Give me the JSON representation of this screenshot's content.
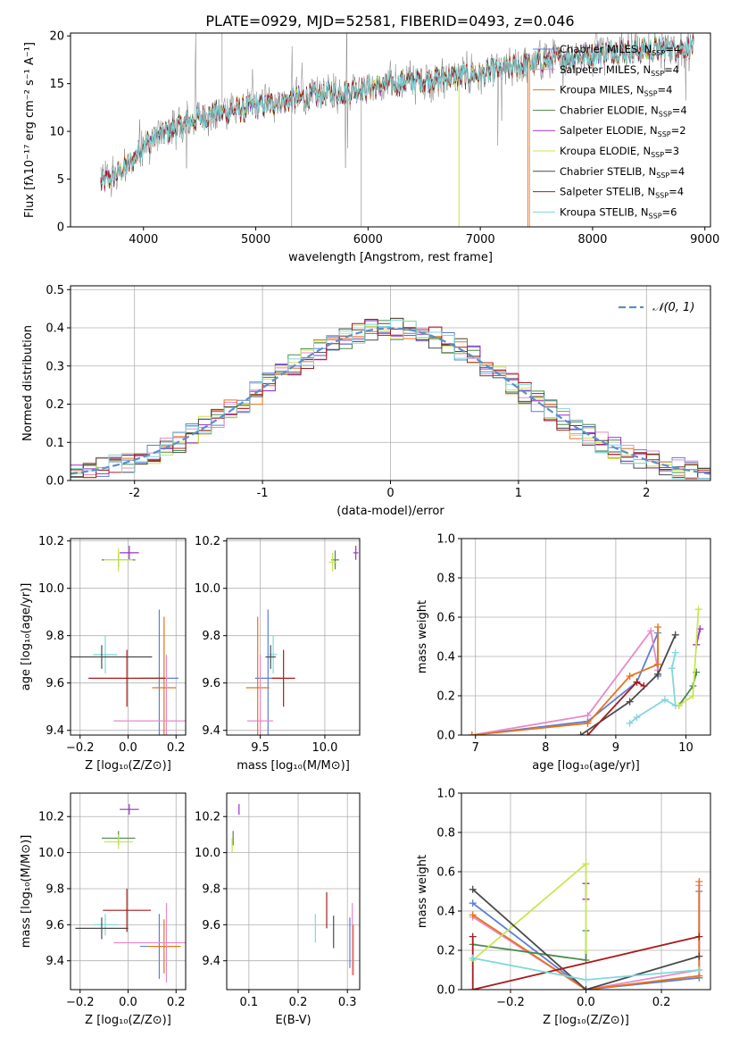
{
  "figure": {
    "title": "PLATE=0929, MJD=52581, FIBERID=0493, z=0.046"
  },
  "colors": {
    "Chabrier MILES": "#5b7fd6",
    "Salpeter MILES": "#e88ac8",
    "Kroupa MILES": "#e8731a",
    "Chabrier ELODIE": "#4c8a4c",
    "Salpeter ELODIE": "#9b30c8",
    "Kroupa ELODIE": "#c8e650",
    "Chabrier STELIB": "#4a4a4a",
    "Salpeter STELIB": "#a81c1c",
    "Kroupa STELIB": "#7fd8dc",
    "data": "#7f7f7f",
    "normal": "#5b8fc8"
  },
  "chart_data": [
    {
      "type": "line",
      "xlabel": "wavelength [Angstrom, rest frame]",
      "ylabel": "Flux [fλ10⁻¹⁷ erg cm⁻² s⁻¹ A⁻¹]",
      "xlim": [
        3350,
        9050
      ],
      "ylim": [
        0,
        20.3
      ],
      "xticks": [
        4000,
        5000,
        6000,
        7000,
        8000,
        9000
      ],
      "yticks": [
        0,
        5,
        10,
        15,
        20
      ],
      "grid": false,
      "legend": "right",
      "continuum_x": [
        3620,
        3700,
        3900,
        4000,
        4200,
        4400,
        4600,
        5000,
        5400,
        5800,
        6200,
        6600,
        7000,
        7400,
        7800,
        8200,
        8600,
        8900
      ],
      "continuum_y": [
        4.5,
        5.0,
        6.8,
        8.8,
        9.8,
        11.0,
        11.8,
        12.6,
        13.5,
        14.2,
        15.0,
        15.5,
        16.0,
        17.0,
        17.8,
        18.4,
        18.6,
        18.8
      ],
      "series": [
        {
          "name": "Chabrier MILES",
          "nssp": "4"
        },
        {
          "name": "Salpeter MILES",
          "nssp": "4"
        },
        {
          "name": "Kroupa MILES",
          "nssp": "4"
        },
        {
          "name": "Chabrier ELODIE",
          "nssp": "4"
        },
        {
          "name": "Salpeter ELODIE",
          "nssp": "2"
        },
        {
          "name": "Kroupa ELODIE",
          "nssp": "3"
        },
        {
          "name": "Chabrier STELIB",
          "nssp": "4"
        },
        {
          "name": "Salpeter STELIB",
          "nssp": "4"
        },
        {
          "name": "Kroupa STELIB",
          "nssp": "6"
        }
      ]
    },
    {
      "type": "line",
      "xlabel": "(data-model)/error",
      "ylabel": "Normed distribution",
      "xlim": [
        -2.5,
        2.5
      ],
      "ylim": [
        0,
        0.51
      ],
      "xticks": [
        -2,
        -1,
        0,
        1,
        2
      ],
      "yticks": [
        0.0,
        0.1,
        0.2,
        0.3,
        0.4,
        0.5
      ],
      "ytick_labels": [
        "0.0",
        "0.1",
        "0.2",
        "0.3",
        "0.4",
        "0.5"
      ],
      "grid": true,
      "legend": "top-right",
      "legend_label": "𝒩(0, 1)",
      "bin_width": 0.1,
      "histogram_series": [
        "Chabrier MILES",
        "Salpeter MILES",
        "Kroupa MILES",
        "Chabrier ELODIE",
        "Salpeter ELODIE",
        "Kroupa ELODIE",
        "Chabrier STELIB",
        "Salpeter STELIB",
        "Kroupa STELIB"
      ]
    },
    {
      "type": "scatter",
      "xlabel": "Z [log₁₀(Z/Z⊙)]",
      "ylabel": "age  [log₁₀(age/yr)]",
      "xlim": [
        -0.24,
        0.24
      ],
      "ylim": [
        9.38,
        10.21
      ],
      "xticks": [
        -0.2,
        0.0,
        0.2
      ],
      "xtick_labels": [
        "−0.2",
        "0.0",
        "0.2"
      ],
      "yticks": [
        9.4,
        9.6,
        9.8,
        10.0,
        10.2
      ],
      "ytick_labels": [
        "9.4",
        "9.6",
        "9.8",
        "10.0",
        "10.2"
      ],
      "grid": true,
      "points": [
        {
          "series": "Salpeter ELODIE",
          "x": 0.005,
          "y": 10.15,
          "xerr": 0.04,
          "yerr": 0.03
        },
        {
          "series": "Chabrier ELODIE",
          "x": -0.04,
          "y": 10.12,
          "xerr": 0.07,
          "yerr": 0.03
        },
        {
          "series": "Kroupa ELODIE",
          "x": -0.04,
          "y": 10.12,
          "xerr": 0.06,
          "yerr": 0.05
        },
        {
          "series": "Chabrier MILES",
          "x": 0.13,
          "y": 9.62,
          "xerr": 0.08,
          "yerr": 0.29
        },
        {
          "series": "Kroupa MILES",
          "x": 0.15,
          "y": 9.58,
          "xerr": 0.05,
          "yerr": 0.3
        },
        {
          "series": "Salpeter MILES",
          "x": 0.16,
          "y": 9.44,
          "xerr": 0.22,
          "yerr": 0.28
        },
        {
          "series": "Kroupa STELIB",
          "x": -0.095,
          "y": 9.72,
          "xerr": 0.05,
          "yerr": 0.08
        },
        {
          "series": "Chabrier STELIB",
          "x": -0.11,
          "y": 9.71,
          "xerr": 0.21,
          "yerr": 0.05
        },
        {
          "series": "Salpeter STELIB",
          "x": -0.005,
          "y": 9.62,
          "xerr": 0.16,
          "yerr": 0.12
        }
      ]
    },
    {
      "type": "scatter",
      "xlabel": "mass [log₁₀(M/M⊙)]",
      "xlim": [
        9.24,
        10.27
      ],
      "ylim": [
        9.38,
        10.21
      ],
      "xticks": [
        9.5,
        10.0
      ],
      "xtick_labels": [
        "9.5",
        "10.0"
      ],
      "yticks": [
        9.4,
        9.6,
        9.8,
        10.0,
        10.2
      ],
      "ytick_labels": [
        "9.4",
        "9.6",
        "9.8",
        "10.0",
        "10.2"
      ],
      "grid": true,
      "points": [
        {
          "series": "Salpeter ELODIE",
          "x": 10.24,
          "y": 10.15,
          "xerr": 0.02,
          "yerr": 0.03
        },
        {
          "series": "Chabrier ELODIE",
          "x": 10.08,
          "y": 10.12,
          "xerr": 0.03,
          "yerr": 0.04
        },
        {
          "series": "Kroupa ELODIE",
          "x": 10.06,
          "y": 10.11,
          "xerr": 0.03,
          "yerr": 0.04
        },
        {
          "series": "Chabrier MILES",
          "x": 9.56,
          "y": 9.62,
          "xerr": 0.1,
          "yerr": 0.29
        },
        {
          "series": "Kroupa MILES",
          "x": 9.48,
          "y": 9.58,
          "xerr": 0.09,
          "yerr": 0.3
        },
        {
          "series": "Salpeter MILES",
          "x": 9.5,
          "y": 9.44,
          "xerr": 0.1,
          "yerr": 0.28
        },
        {
          "series": "Kroupa STELIB",
          "x": 9.6,
          "y": 9.72,
          "xerr": 0.03,
          "yerr": 0.08
        },
        {
          "series": "Chabrier STELIB",
          "x": 9.58,
          "y": 9.71,
          "xerr": 0.04,
          "yerr": 0.05
        },
        {
          "series": "Salpeter STELIB",
          "x": 9.68,
          "y": 9.62,
          "xerr": 0.09,
          "yerr": 0.12
        }
      ]
    },
    {
      "type": "line",
      "xlabel": "age  [log₁₀(age/yr)]",
      "ylabel": "mass weight",
      "xlim": [
        6.8,
        10.35
      ],
      "ylim": [
        0,
        1.0
      ],
      "xticks": [
        7,
        8,
        9,
        10
      ],
      "xtick_labels": [
        "7",
        "8",
        "9",
        "10"
      ],
      "yticks": [
        0.0,
        0.2,
        0.4,
        0.6,
        0.8,
        1.0
      ],
      "ytick_labels": [
        "0.0",
        "0.2",
        "0.4",
        "0.6",
        "0.8",
        "1.0"
      ],
      "grid": true,
      "series": [
        {
          "name": "Chabrier MILES",
          "x": [
            6.95,
            8.6,
            9.3,
            9.6,
            9.6
          ],
          "y": [
            0.0,
            0.07,
            0.27,
            0.52,
            0.3
          ]
        },
        {
          "name": "Salpeter MILES",
          "x": [
            6.95,
            8.6,
            9.5,
            9.6
          ],
          "y": [
            0.0,
            0.1,
            0.53,
            0.33
          ]
        },
        {
          "name": "Kroupa MILES",
          "x": [
            6.95,
            8.6,
            9.2,
            9.6,
            9.6
          ],
          "y": [
            0.0,
            0.06,
            0.3,
            0.36,
            0.55
          ]
        },
        {
          "name": "Chabrier ELODIE",
          "x": [
            9.9,
            10.1,
            10.15
          ],
          "y": [
            0.15,
            0.25,
            0.32
          ]
        },
        {
          "name": "Salpeter ELODIE",
          "x": [
            10.15,
            10.2
          ],
          "y": [
            0.46,
            0.54
          ]
        },
        {
          "name": "Kroupa ELODIE",
          "x": [
            9.9,
            10.1,
            10.18
          ],
          "y": [
            0.15,
            0.2,
            0.64
          ]
        },
        {
          "name": "Chabrier STELIB",
          "x": [
            8.5,
            9.2,
            9.6,
            9.85
          ],
          "y": [
            0.0,
            0.17,
            0.31,
            0.51
          ]
        },
        {
          "name": "Salpeter STELIB",
          "x": [
            8.6,
            9.3,
            9.4
          ],
          "y": [
            0.0,
            0.27,
            0.25
          ]
        },
        {
          "name": "Kroupa STELIB",
          "x": [
            9.2,
            9.3,
            9.7,
            9.85,
            9.8,
            9.85
          ],
          "y": [
            0.06,
            0.09,
            0.18,
            0.15,
            0.34,
            0.42
          ]
        }
      ]
    },
    {
      "type": "scatter",
      "xlabel": "Z [log₁₀(Z/Z⊙)]",
      "ylabel": "mass [log₁₀(M/M⊙)]",
      "xlim": [
        -0.24,
        0.24
      ],
      "ylim": [
        9.24,
        10.33
      ],
      "xticks": [
        -0.2,
        0.0,
        0.2
      ],
      "xtick_labels": [
        "−0.2",
        "0.0",
        "0.2"
      ],
      "yticks": [
        9.4,
        9.6,
        9.8,
        10.0,
        10.2
      ],
      "ytick_labels": [
        "9.4",
        "9.6",
        "9.8",
        "10.0",
        "10.2"
      ],
      "grid": true,
      "points": [
        {
          "series": "Salpeter ELODIE",
          "x": 0.005,
          "y": 10.24,
          "xerr": 0.04,
          "yerr": 0.03
        },
        {
          "series": "Chabrier ELODIE",
          "x": -0.04,
          "y": 10.08,
          "xerr": 0.07,
          "yerr": 0.04
        },
        {
          "series": "Kroupa ELODIE",
          "x": -0.04,
          "y": 10.06,
          "xerr": 0.06,
          "yerr": 0.04
        },
        {
          "series": "Chabrier MILES",
          "x": 0.13,
          "y": 9.48,
          "xerr": 0.08,
          "yerr": 0.18
        },
        {
          "series": "Kroupa MILES",
          "x": 0.15,
          "y": 9.48,
          "xerr": 0.07,
          "yerr": 0.15
        },
        {
          "series": "Salpeter MILES",
          "x": 0.16,
          "y": 9.5,
          "xerr": 0.22,
          "yerr": 0.22
        },
        {
          "series": "Kroupa STELIB",
          "x": -0.095,
          "y": 9.6,
          "xerr": 0.05,
          "yerr": 0.06
        },
        {
          "series": "Chabrier STELIB",
          "x": -0.11,
          "y": 9.58,
          "xerr": 0.11,
          "yerr": 0.06
        },
        {
          "series": "Salpeter STELIB",
          "x": -0.005,
          "y": 9.68,
          "xerr": 0.1,
          "yerr": 0.12
        }
      ]
    },
    {
      "type": "scatter",
      "xlabel": "E(B-V)",
      "xlim": [
        0.055,
        0.325
      ],
      "ylim": [
        9.24,
        10.33
      ],
      "xticks": [
        0.1,
        0.2,
        0.3
      ],
      "xtick_labels": [
        "0.1",
        "0.2",
        "0.3"
      ],
      "yticks": [
        9.4,
        9.6,
        9.8,
        10.0,
        10.2
      ],
      "ytick_labels": [
        "9.4",
        "9.6",
        "9.8",
        "10.0",
        "10.2"
      ],
      "grid": true,
      "points": [
        {
          "series": "Salpeter ELODIE",
          "x": 0.08,
          "y": 10.24,
          "xerr": 0,
          "yerr": 0.03
        },
        {
          "series": "Chabrier ELODIE",
          "x": 0.068,
          "y": 10.08,
          "xerr": 0,
          "yerr": 0.04
        },
        {
          "series": "Kroupa ELODIE",
          "x": 0.066,
          "y": 10.04,
          "xerr": 0,
          "yerr": 0.04
        },
        {
          "series": "Kroupa STELIB",
          "x": 0.235,
          "y": 9.58,
          "xerr": 0,
          "yerr": 0.08
        },
        {
          "series": "Salpeter STELIB",
          "x": 0.258,
          "y": 9.68,
          "xerr": 0,
          "yerr": 0.1
        },
        {
          "series": "Chabrier STELIB",
          "x": 0.272,
          "y": 9.56,
          "xerr": 0,
          "yerr": 0.09
        },
        {
          "series": "Chabrier MILES",
          "x": 0.305,
          "y": 9.5,
          "xerr": 0,
          "yerr": 0.14
        },
        {
          "series": "Salpeter MILES",
          "x": 0.31,
          "y": 9.52,
          "xerr": 0,
          "yerr": 0.2
        },
        {
          "series": "Kroupa MILES",
          "x": 0.312,
          "y": 9.46,
          "xerr": 0,
          "yerr": 0.14
        }
      ]
    },
    {
      "type": "line",
      "xlabel": "Z [log₁₀(Z/Z⊙)]",
      "ylabel": "mass weight",
      "xlim": [
        -0.33,
        0.33
      ],
      "ylim": [
        0,
        1.0
      ],
      "xticks": [
        -0.2,
        0.0,
        0.2
      ],
      "xtick_labels": [
        "−0.2",
        "0.0",
        "0.2"
      ],
      "yticks": [
        0.0,
        0.2,
        0.4,
        0.6,
        0.8,
        1.0
      ],
      "ytick_labels": [
        "0.0",
        "0.2",
        "0.4",
        "0.6",
        "0.8",
        "1.0"
      ],
      "grid": true,
      "series": [
        {
          "name": "Chabrier MILES",
          "x": [
            -0.3,
            0.0,
            0.3,
            0.3
          ],
          "y": [
            0.44,
            0.0,
            0.06,
            0.5
          ]
        },
        {
          "name": "Salpeter MILES",
          "x": [
            -0.3,
            0.0,
            0.3,
            0.3
          ],
          "y": [
            0.37,
            0.0,
            0.1,
            0.53
          ]
        },
        {
          "name": "Kroupa MILES",
          "x": [
            -0.3,
            0.0,
            0.3,
            0.3
          ],
          "y": [
            0.38,
            0.0,
            0.07,
            0.55
          ]
        },
        {
          "name": "Chabrier ELODIE",
          "x": [
            -0.3,
            0.0,
            0.0
          ],
          "y": [
            0.23,
            0.15,
            0.3
          ]
        },
        {
          "name": "Salpeter ELODIE",
          "x": [
            0.0,
            0.0
          ],
          "y": [
            0.46,
            0.54
          ]
        },
        {
          "name": "Kroupa ELODIE",
          "x": [
            -0.3,
            0.0,
            0.0
          ],
          "y": [
            0.15,
            0.64,
            0.2
          ]
        },
        {
          "name": "Chabrier STELIB",
          "x": [
            -0.3,
            0.0,
            0.3
          ],
          "y": [
            0.51,
            0.0,
            0.17
          ]
        },
        {
          "name": "Salpeter STELIB",
          "x": [
            -0.3,
            -0.3,
            0.3
          ],
          "y": [
            0.27,
            0.0,
            0.27
          ]
        },
        {
          "name": "Kroupa STELIB",
          "x": [
            -0.3,
            0.0,
            0.3
          ],
          "y": [
            0.16,
            0.05,
            0.1
          ]
        }
      ]
    }
  ]
}
